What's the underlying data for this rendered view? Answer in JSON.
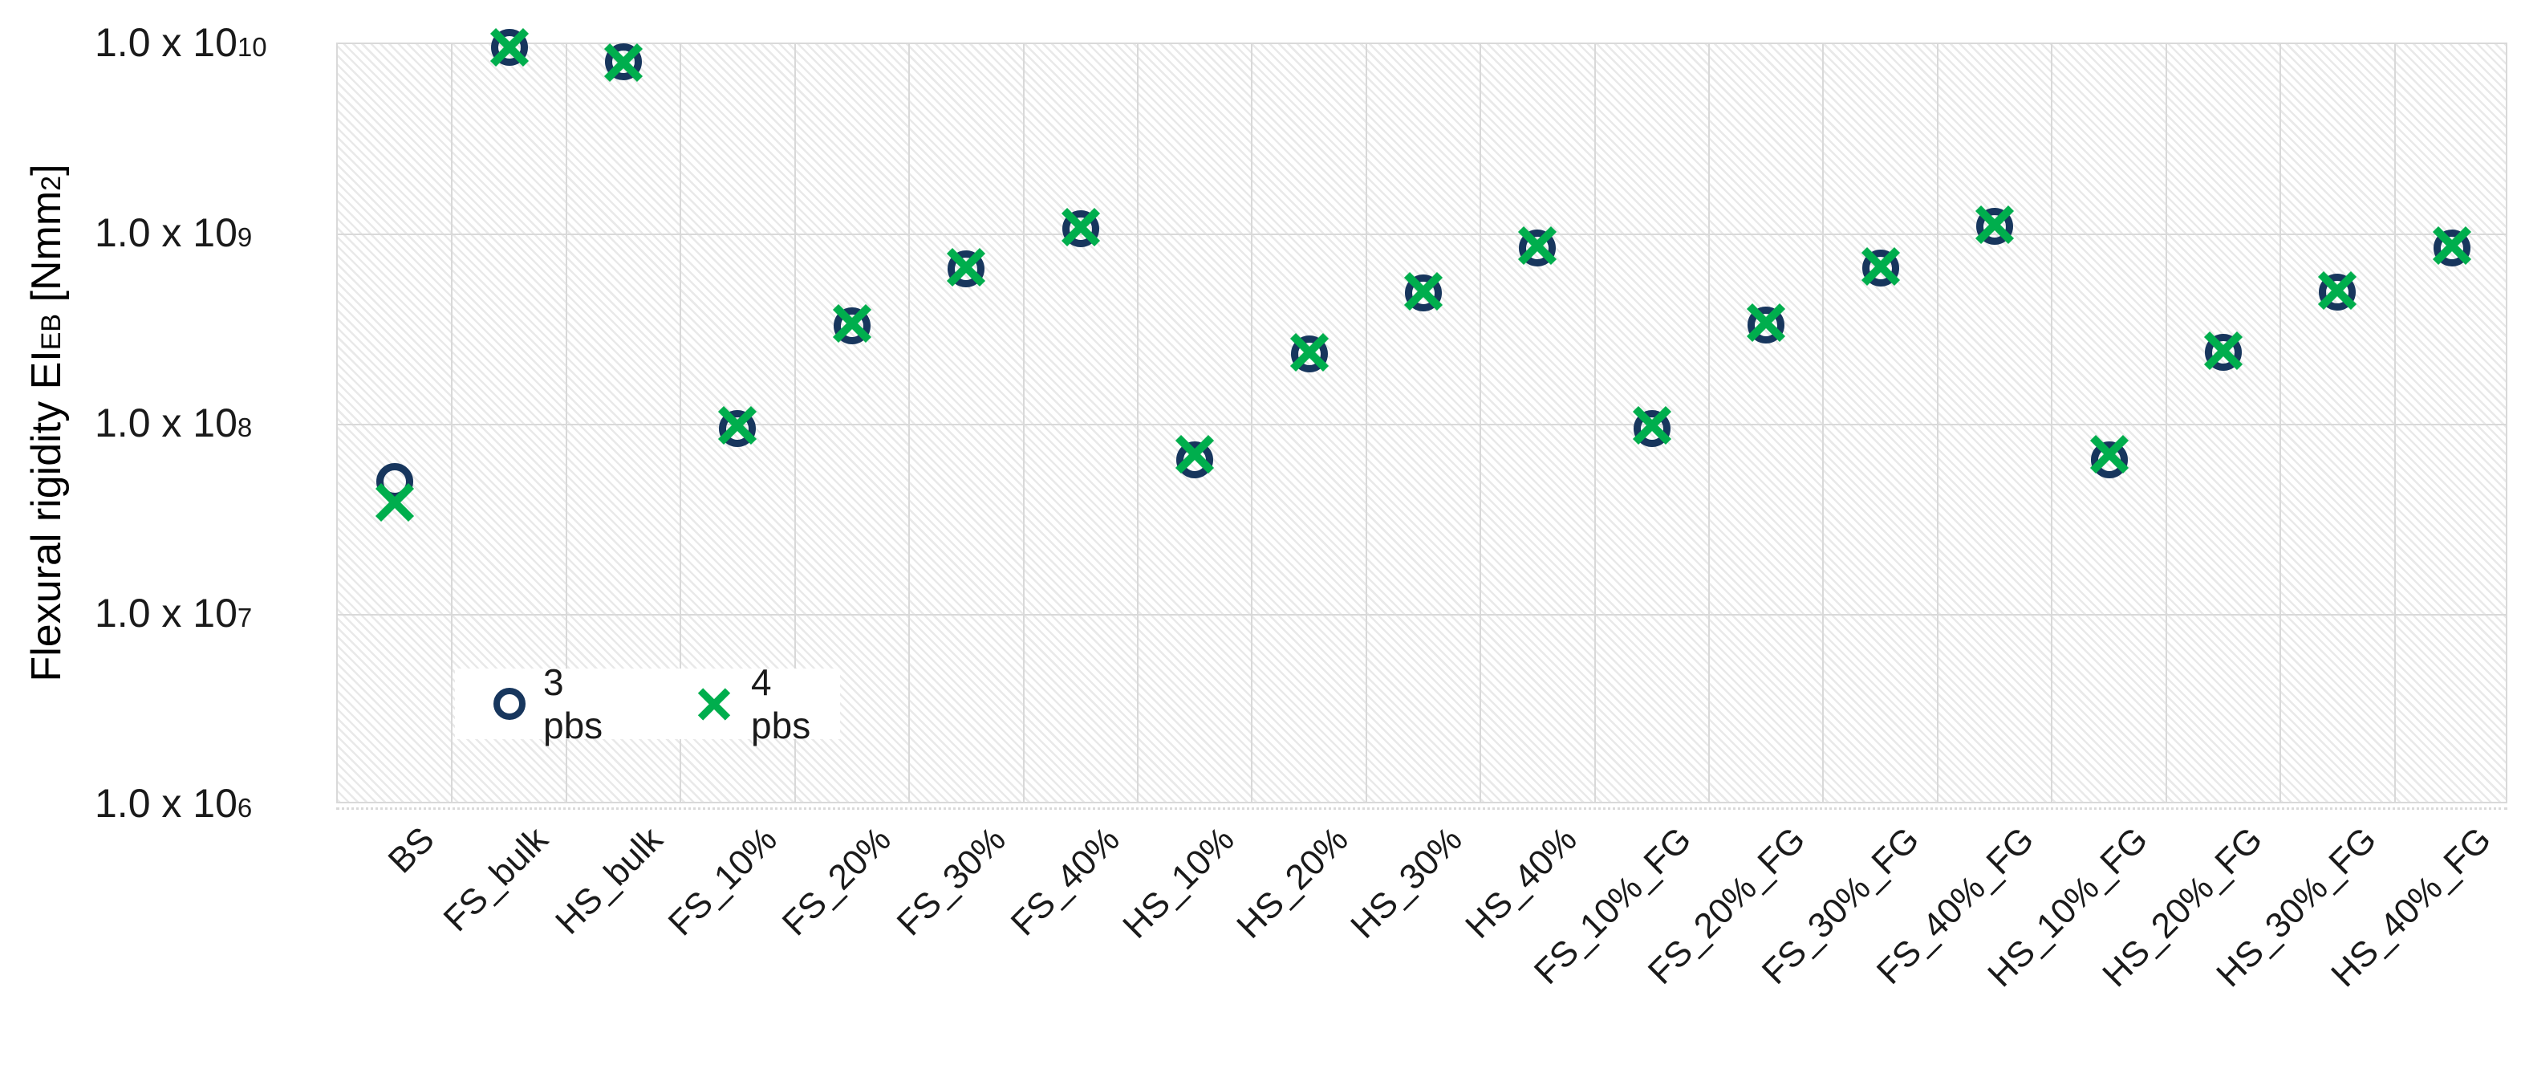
{
  "chart_data": {
    "type": "scatter",
    "title": "",
    "ylabel": {
      "prefix": "Flexural rigidity EI",
      "subscript": "EB",
      "unit_prefix": " [Nmm",
      "unit_superscript": "2",
      "unit_suffix": "]"
    },
    "y_axis": {
      "scale": "log",
      "min": 1000000.0,
      "max": 10000000000.0,
      "ticks": [
        {
          "base": "1.0 x 10",
          "exp": "10",
          "value": 10000000000.0
        },
        {
          "base": "1.0 x 10",
          "exp": "9",
          "value": 1000000000.0
        },
        {
          "base": "1.0 x 10",
          "exp": "8",
          "value": 100000000.0
        },
        {
          "base": "1.0 x 10",
          "exp": "7",
          "value": 10000000.0
        },
        {
          "base": "1.0 x 10",
          "exp": "6",
          "value": 1000000.0
        }
      ]
    },
    "categories": [
      "BS",
      "FS_bulk",
      "HS_bulk",
      "FS_10%",
      "FS_20%",
      "FS_30%",
      "FS_40%",
      "HS_10%",
      "HS_20%",
      "HS_30%",
      "HS_40%",
      "FS_10%_FG",
      "FS_20%_FG",
      "FS_30%_FG",
      "FS_40%_FG",
      "HS_10%_FG",
      "HS_20%_FG",
      "HS_30%_FG",
      "HS_40%_FG"
    ],
    "series": [
      {
        "name": "3 pbs",
        "marker": "circle",
        "color": "#17365d",
        "values": [
          50000000.0,
          9600000000.0,
          8100000000.0,
          95000000.0,
          330000000.0,
          660000000.0,
          1070000000.0,
          65000000.0,
          235000000.0,
          490000000.0,
          850000000.0,
          95000000.0,
          335000000.0,
          665000000.0,
          1100000000.0,
          65000000.0,
          240000000.0,
          495000000.0,
          850000000.0
        ]
      },
      {
        "name": "4 pbs",
        "marker": "x",
        "color": "#00ae4d",
        "values": [
          39000000.0,
          9600000000.0,
          8000000000.0,
          99000000.0,
          340000000.0,
          670000000.0,
          1090000000.0,
          70000000.0,
          240000000.0,
          500000000.0,
          870000000.0,
          99000000.0,
          345000000.0,
          675000000.0,
          1120000000.0,
          70000000.0,
          245000000.0,
          505000000.0,
          870000000.0
        ]
      }
    ],
    "legend": {
      "position": "inside-bottom-left"
    },
    "grid": true,
    "gridline_color": "#d9d9d9",
    "plot_hatch": "light-diagonal"
  }
}
